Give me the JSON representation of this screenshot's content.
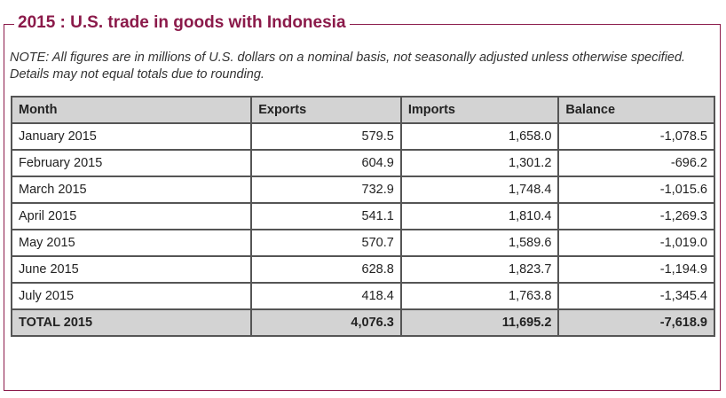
{
  "title": "2015 : U.S. trade in goods with Indonesia",
  "note": "NOTE: All figures are in millions of U.S. dollars on a nominal basis, not seasonally adjusted unless otherwise specified. Details may not equal totals due to rounding.",
  "table": {
    "headers": {
      "month": "Month",
      "exports": "Exports",
      "imports": "Imports",
      "balance": "Balance"
    },
    "rows": [
      {
        "month": "January 2015",
        "exports": "579.5",
        "imports": "1,658.0",
        "balance": "-1,078.5"
      },
      {
        "month": "February 2015",
        "exports": "604.9",
        "imports": "1,301.2",
        "balance": "-696.2"
      },
      {
        "month": "March 2015",
        "exports": "732.9",
        "imports": "1,748.4",
        "balance": "-1,015.6"
      },
      {
        "month": "April 2015",
        "exports": "541.1",
        "imports": "1,810.4",
        "balance": "-1,269.3"
      },
      {
        "month": "May 2015",
        "exports": "570.7",
        "imports": "1,589.6",
        "balance": "-1,019.0"
      },
      {
        "month": "June 2015",
        "exports": "628.8",
        "imports": "1,823.7",
        "balance": "-1,194.9"
      },
      {
        "month": "July 2015",
        "exports": "418.4",
        "imports": "1,763.8",
        "balance": "-1,345.4"
      }
    ],
    "total": {
      "month": "TOTAL 2015",
      "exports": "4,076.3",
      "imports": "11,695.2",
      "balance": "-7,618.9"
    }
  },
  "colors": {
    "title": "#8b1a4a",
    "border": "#8b1a4a",
    "header_bg": "#d3d3d3"
  }
}
